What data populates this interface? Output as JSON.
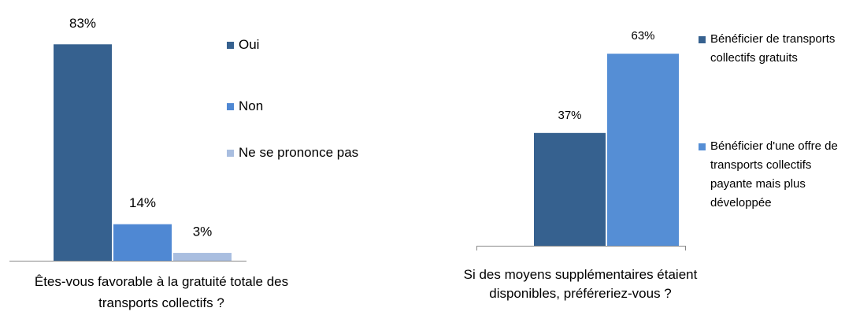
{
  "chart_data": [
    {
      "type": "bar",
      "categories": [
        "Êtes-vous favorable à la gratuité totale des transports collectifs ?"
      ],
      "series": [
        {
          "name": "Oui",
          "color": "#36618f",
          "values": [
            83
          ],
          "value_labels": [
            "83%"
          ]
        },
        {
          "name": "Non",
          "color": "#4f88d3",
          "values": [
            14
          ],
          "value_labels": [
            "14%"
          ]
        },
        {
          "name": "Ne se prononce pas",
          "color": "#a9bee0",
          "values": [
            3
          ],
          "value_labels": [
            "3%"
          ]
        }
      ]
    },
    {
      "type": "bar",
      "categories": [
        "Si des moyens supplémentaires étaient disponibles, préféreriez-vous ?"
      ],
      "series": [
        {
          "name": "Bénéficier de transports collectifs gratuits",
          "color": "#36618f",
          "values": [
            37
          ],
          "value_labels": [
            "37%"
          ]
        },
        {
          "name": "Bénéficier d'une offre de transports collectifs payante mais plus développée",
          "color": "#558ed5",
          "values": [
            63
          ],
          "value_labels": [
            "63%"
          ]
        }
      ]
    }
  ]
}
